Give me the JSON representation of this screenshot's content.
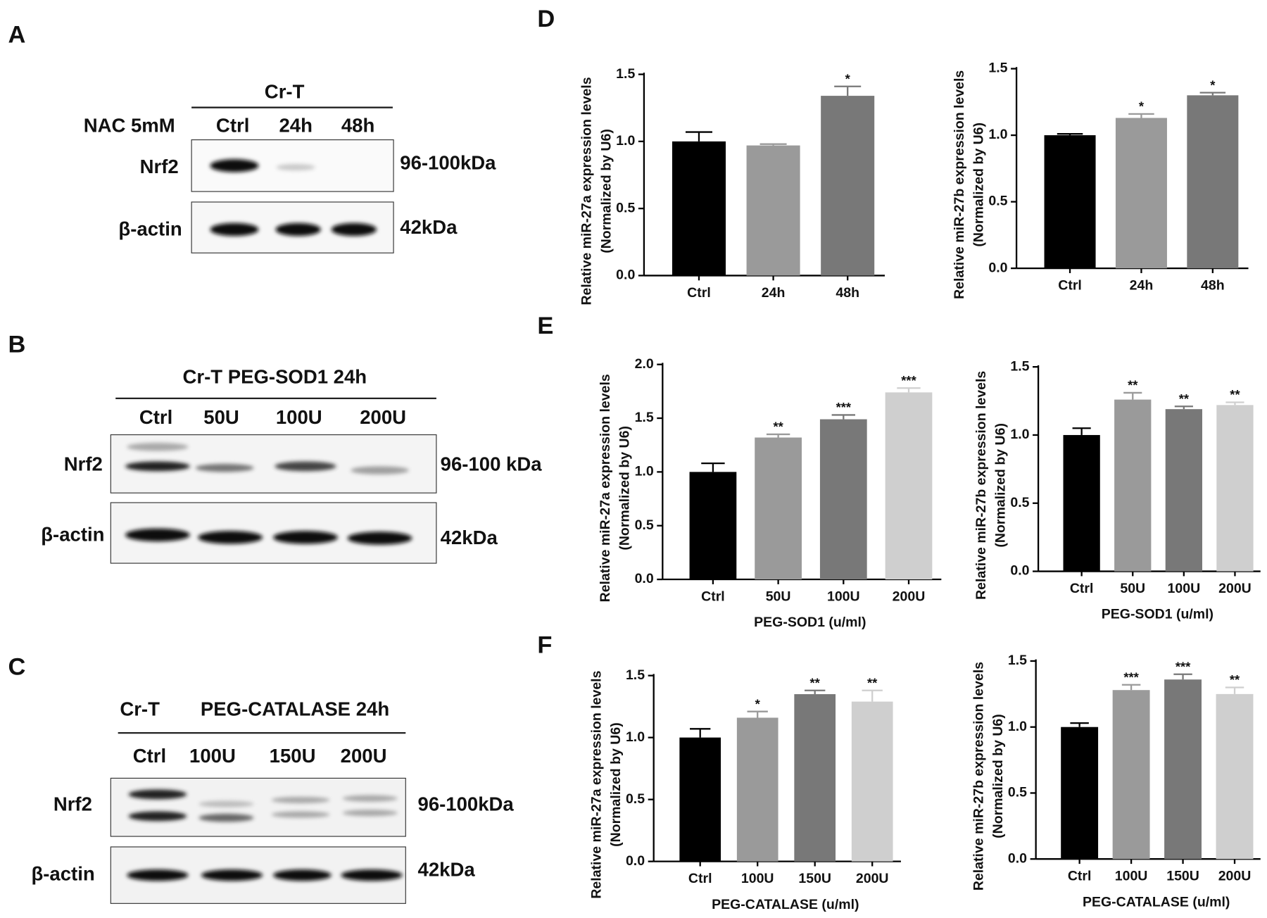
{
  "panels": {
    "letters": [
      "A",
      "B",
      "C",
      "D",
      "E",
      "F"
    ]
  },
  "blots": [
    {
      "header": "Cr-T",
      "treatment": "NAC 5mM",
      "lanes": [
        "Ctrl",
        "24h",
        "48h"
      ],
      "rows": [
        {
          "protein": "Nrf2",
          "size": "96-100kDa"
        },
        {
          "protein": "β-actin",
          "size": "42kDa"
        }
      ]
    },
    {
      "header": "Cr-T PEG-SOD1 24h",
      "lanes": [
        "Ctrl",
        "50U",
        "100U",
        "200U"
      ],
      "rows": [
        {
          "protein": "Nrf2",
          "size": "96-100 kDa"
        },
        {
          "protein": "β-actin",
          "size": "42kDa"
        }
      ]
    },
    {
      "header": "Cr-T",
      "treatment": "PEG-CATALASE 24h",
      "lanes": [
        "Ctrl",
        "100U",
        "150U",
        "200U"
      ],
      "rows": [
        {
          "protein": "Nrf2",
          "size": "96-100kDa"
        },
        {
          "protein": "β-actin",
          "size": "42kDa"
        }
      ]
    }
  ],
  "chart_data": [
    {
      "type": "bar",
      "ylabel": [
        "Relative miR-27a expression levels",
        "(Normalized by U6)"
      ],
      "categories": [
        "Ctrl",
        "24h",
        "48h"
      ],
      "values": [
        1.0,
        0.97,
        1.34
      ],
      "errors": [
        0.07,
        0.01,
        0.07
      ],
      "significance": [
        null,
        null,
        "*"
      ],
      "colors": [
        "#000000",
        "#9a9a9a",
        "#787878"
      ],
      "ylim": [
        0,
        1.5
      ],
      "yticks": [
        {
          "value": 0,
          "label": "0.0"
        },
        {
          "value": 0.5,
          "label": "0.5"
        },
        {
          "value": 1,
          "label": "1.0"
        },
        {
          "value": 1.5,
          "label": "1.5"
        }
      ]
    },
    {
      "type": "bar",
      "ylabel": [
        "Relative miR-27b expression levels",
        "(Normalized by U6)"
      ],
      "categories": [
        "Ctrl",
        "24h",
        "48h"
      ],
      "values": [
        1.0,
        1.13,
        1.3
      ],
      "errors": [
        0.01,
        0.03,
        0.02
      ],
      "significance": [
        null,
        "*",
        "*"
      ],
      "colors": [
        "#000000",
        "#9a9a9a",
        "#787878"
      ],
      "ylim": [
        0,
        1.5
      ],
      "yticks": [
        {
          "value": 0,
          "label": "0.0"
        },
        {
          "value": 0.5,
          "label": "0.5"
        },
        {
          "value": 1,
          "label": "1.0"
        },
        {
          "value": 1.5,
          "label": "1.5"
        }
      ]
    },
    {
      "type": "bar",
      "ylabel": [
        "Relative miR-27a expression levels",
        "(Normalized by U6)"
      ],
      "xlabel": "PEG-SOD1 (u/ml)",
      "categories": [
        "Ctrl",
        "50U",
        "100U",
        "200U"
      ],
      "values": [
        1.0,
        1.32,
        1.49,
        1.74
      ],
      "errors": [
        0.08,
        0.03,
        0.04,
        0.04
      ],
      "significance": [
        null,
        "**",
        "***",
        "***"
      ],
      "colors": [
        "#000000",
        "#9a9a9a",
        "#787878",
        "#cfcfcf"
      ],
      "ylim": [
        0,
        2
      ],
      "yticks": [
        {
          "value": 0,
          "label": "0.0"
        },
        {
          "value": 0.5,
          "label": "0.5"
        },
        {
          "value": 1,
          "label": "1.0"
        },
        {
          "value": 1.5,
          "label": "1.5"
        },
        {
          "value": 2,
          "label": "2.0"
        }
      ]
    },
    {
      "type": "bar",
      "ylabel": [
        "Relative miR-27b expression levels",
        "(Normalized by U6)"
      ],
      "xlabel": "PEG-SOD1 (u/ml)",
      "categories": [
        "Ctrl",
        "50U",
        "100U",
        "200U"
      ],
      "values": [
        1.0,
        1.26,
        1.19,
        1.22
      ],
      "errors": [
        0.05,
        0.05,
        0.02,
        0.02
      ],
      "significance": [
        null,
        "**",
        "**",
        "**"
      ],
      "colors": [
        "#000000",
        "#9a9a9a",
        "#787878",
        "#cfcfcf"
      ],
      "ylim": [
        0,
        1.5
      ],
      "yticks": [
        {
          "value": 0,
          "label": "0.0"
        },
        {
          "value": 0.5,
          "label": "0.5"
        },
        {
          "value": 1,
          "label": "1.0"
        },
        {
          "value": 1.5,
          "label": "1.5"
        }
      ]
    },
    {
      "type": "bar",
      "ylabel": [
        "Relative miR-27a expression levels",
        "(Normalized by U6)"
      ],
      "xlabel": "PEG-CATALASE (u/ml)",
      "categories": [
        "Ctrl",
        "100U",
        "150U",
        "200U"
      ],
      "values": [
        1.0,
        1.16,
        1.35,
        1.29
      ],
      "errors": [
        0.07,
        0.05,
        0.03,
        0.09
      ],
      "significance": [
        null,
        "*",
        "**",
        "**"
      ],
      "colors": [
        "#000000",
        "#9a9a9a",
        "#787878",
        "#cfcfcf"
      ],
      "ylim": [
        0,
        1.5
      ],
      "yticks": [
        {
          "value": 0,
          "label": "0.0"
        },
        {
          "value": 0.5,
          "label": "0.5"
        },
        {
          "value": 1,
          "label": "1.0"
        },
        {
          "value": 1.5,
          "label": "1.5"
        }
      ]
    },
    {
      "type": "bar",
      "ylabel": [
        "Relative miR-27b expression levels",
        "(Normalized by U6)"
      ],
      "xlabel": "PEG-CATALASE (u/ml)",
      "categories": [
        "Ctrl",
        "100U",
        "150U",
        "200U"
      ],
      "values": [
        1.0,
        1.28,
        1.36,
        1.25
      ],
      "errors": [
        0.03,
        0.04,
        0.04,
        0.05
      ],
      "significance": [
        null,
        "***",
        "***",
        "**"
      ],
      "colors": [
        "#000000",
        "#9a9a9a",
        "#787878",
        "#cfcfcf"
      ],
      "ylim": [
        0,
        1.5
      ],
      "yticks": [
        {
          "value": 0,
          "label": "0.0"
        },
        {
          "value": 0.5,
          "label": "0.5"
        },
        {
          "value": 1,
          "label": "1.0"
        },
        {
          "value": 1.5,
          "label": "1.5"
        }
      ]
    }
  ]
}
